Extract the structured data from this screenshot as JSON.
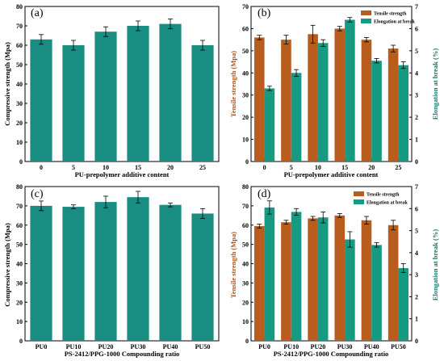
{
  "chart_data": [
    {
      "panel": "(a)",
      "type": "bar",
      "categories": [
        "0",
        "5",
        "10",
        "15",
        "20",
        "25"
      ],
      "xlabel": "PU-prepolymer additive content",
      "ylabel": "Compressive strength (Mpa)",
      "ylim": [
        0,
        80
      ],
      "yticks": [
        0,
        10,
        20,
        30,
        40,
        50,
        60,
        70,
        80
      ],
      "series": [
        {
          "values": [
            63,
            60,
            67,
            70,
            71,
            60
          ],
          "errors": [
            2.5,
            2.5,
            2.5,
            2.5,
            2.5,
            2.5
          ],
          "color": "#1a8d83"
        }
      ]
    },
    {
      "panel": "(b)",
      "type": "bar",
      "categories": [
        "0",
        "5",
        "10",
        "15",
        "20",
        "25"
      ],
      "xlabel": "PU-prepolymer additive content",
      "ylabel": "Tensile strength (Mpa)",
      "y2label": "Elongation at break (%)",
      "ylim": [
        0,
        70
      ],
      "yticks": [
        0,
        10,
        20,
        30,
        40,
        50,
        60,
        70
      ],
      "y2lim": [
        0,
        7
      ],
      "y2ticks": [
        0,
        1,
        2,
        3,
        4,
        5,
        6,
        7
      ],
      "legend": "top-right",
      "series": [
        {
          "name": "Tensile strength",
          "axis": "left",
          "values": [
            56,
            55,
            57.5,
            60,
            55,
            51
          ],
          "errors": [
            1,
            2,
            4,
            1,
            1,
            1.5
          ],
          "color": "#b85d1d"
        },
        {
          "name": "Elongation at break",
          "axis": "right",
          "values": [
            3.3,
            4.0,
            5.35,
            6.4,
            4.55,
            4.35
          ],
          "errors": [
            0.1,
            0.15,
            0.15,
            0.1,
            0.1,
            0.15
          ],
          "color": "#169b82"
        }
      ]
    },
    {
      "panel": "(c)",
      "type": "bar",
      "categories": [
        "PU0",
        "PU10",
        "PU20",
        "PU30",
        "PU40",
        "PU50"
      ],
      "xlabel": "PS-2412/PPG-1000 Compounding ratio",
      "ylabel": "Compressive strength (Mpa)",
      "ylim": [
        0,
        80
      ],
      "yticks": [
        0,
        10,
        20,
        30,
        40,
        50,
        60,
        70,
        80
      ],
      "series": [
        {
          "values": [
            70,
            69.5,
            72,
            74.5,
            70.5,
            66
          ],
          "errors": [
            2.5,
            1,
            3,
            3,
            1,
            2.5
          ],
          "color": "#1a8d83"
        }
      ]
    },
    {
      "panel": "(d)",
      "type": "bar",
      "categories": [
        "PU0",
        "PU10",
        "PU20",
        "PU30",
        "PU40",
        "PU50"
      ],
      "xlabel": "PS-2412/PPG-1000 Compounding ratio",
      "ylabel": "Tensile strength (Mpa)",
      "y2label": "Elongation at break (%)",
      "ylim": [
        0,
        80
      ],
      "yticks": [
        0,
        10,
        20,
        30,
        40,
        50,
        60,
        70,
        80
      ],
      "y2lim": [
        0,
        7
      ],
      "y2ticks": [
        0,
        1,
        2,
        3,
        4,
        5,
        6,
        7
      ],
      "legend": "top-right",
      "series": [
        {
          "name": "Tensile strength",
          "axis": "left",
          "values": [
            59.5,
            61.5,
            63.5,
            65,
            62.5,
            60
          ],
          "errors": [
            1,
            1,
            1,
            1,
            2,
            2.5
          ],
          "color": "#b85d1d"
        },
        {
          "name": "Elongation at break",
          "axis": "right",
          "values": [
            6.05,
            5.85,
            5.6,
            4.6,
            4.35,
            3.3
          ],
          "errors": [
            0.3,
            0.15,
            0.25,
            0.35,
            0.1,
            0.2
          ],
          "color": "#169b82"
        }
      ]
    }
  ],
  "colors": {
    "compressive": "#1a8d83",
    "tensile": "#b85d1d",
    "elongation": "#169b82",
    "tensile_label": "#a8541c",
    "elongation_label": "#117a64"
  }
}
